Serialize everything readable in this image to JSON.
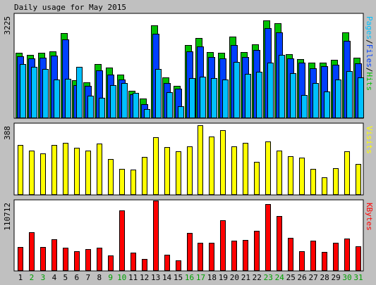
{
  "title": "Daily usage for May 2015",
  "colors": {
    "page_bg": "#c0c0c0",
    "panel_bg": "#ffffff",
    "hits": "#00c000",
    "files": "#0040ff",
    "pages": "#00c0ff",
    "visits": "#ffff00",
    "kbytes": "#ff0000",
    "weekday_label": "#000000",
    "weekend_label": "#00a000"
  },
  "chart_data": [
    {
      "type": "bar",
      "panel": "top",
      "ymax_label": "3225",
      "ylabel_parts": [
        {
          "text": "Pages",
          "color": "#00c0ff"
        },
        {
          "text": "/",
          "color": "#000000"
        },
        {
          "text": "Files",
          "color": "#0040ff"
        },
        {
          "text": "/",
          "color": "#000000"
        },
        {
          "text": "Hits",
          "color": "#00c000"
        }
      ],
      "ylim": [
        0,
        3225
      ],
      "categories": [
        "1",
        "2",
        "3",
        "4",
        "5",
        "6",
        "7",
        "8",
        "9",
        "10",
        "11",
        "12",
        "13",
        "14",
        "15",
        "16",
        "17",
        "18",
        "19",
        "20",
        "21",
        "22",
        "23",
        "24",
        "25",
        "26",
        "27",
        "28",
        "29",
        "30",
        "31"
      ],
      "series": [
        {
          "name": "Hits",
          "color": "#00c000",
          "values": [
            2010,
            1960,
            2010,
            2060,
            2640,
            1160,
            1100,
            1660,
            1560,
            1330,
            840,
            590,
            2870,
            1240,
            990,
            2250,
            2490,
            2040,
            2010,
            2520,
            2040,
            2290,
            3020,
            2950,
            1970,
            1830,
            1720,
            1720,
            1790,
            2660,
            1860
          ]
        },
        {
          "name": "Files",
          "color": "#0040ff",
          "values": [
            1910,
            1840,
            1870,
            1920,
            2440,
            1000,
            980,
            1460,
            1330,
            1180,
            730,
            410,
            2620,
            1080,
            900,
            2060,
            2220,
            1880,
            1850,
            2270,
            1880,
            2100,
            2780,
            2660,
            1840,
            1710,
            1530,
            1600,
            1640,
            2390,
            1700
          ]
        },
        {
          "name": "Pages",
          "color": "#00c0ff",
          "values": [
            1660,
            1570,
            1520,
            1180,
            1200,
            1570,
            670,
            610,
            1000,
            1080,
            770,
            260,
            1520,
            790,
            360,
            1230,
            1280,
            1220,
            1190,
            1730,
            1350,
            1420,
            1720,
            1950,
            1390,
            710,
            1080,
            810,
            1180,
            1440,
            1240
          ]
        }
      ]
    },
    {
      "type": "bar",
      "panel": "middle",
      "ymax_label": "388",
      "ylabel_parts": [
        {
          "text": "Visits",
          "color": "#ffff00"
        }
      ],
      "ylim": [
        0,
        388
      ],
      "categories": [
        "1",
        "2",
        "3",
        "4",
        "5",
        "6",
        "7",
        "8",
        "9",
        "10",
        "11",
        "12",
        "13",
        "14",
        "15",
        "16",
        "17",
        "18",
        "19",
        "20",
        "21",
        "22",
        "23",
        "24",
        "25",
        "26",
        "27",
        "28",
        "29",
        "30",
        "31"
      ],
      "series": [
        {
          "name": "Visits",
          "color": "#ffff00",
          "values": [
            270,
            240,
            225,
            270,
            285,
            255,
            240,
            280,
            195,
            140,
            135,
            205,
            315,
            260,
            235,
            265,
            380,
            320,
            355,
            265,
            285,
            180,
            290,
            240,
            210,
            200,
            140,
            95,
            145,
            235,
            165
          ]
        }
      ]
    },
    {
      "type": "bar",
      "panel": "bottom",
      "ymax_label": "110712",
      "ylabel_parts": [
        {
          "text": "KBytes",
          "color": "#ff0000"
        }
      ],
      "ylim": [
        0,
        110712
      ],
      "categories": [
        "1",
        "2",
        "3",
        "4",
        "5",
        "6",
        "7",
        "8",
        "9",
        "10",
        "11",
        "12",
        "13",
        "14",
        "15",
        "16",
        "17",
        "18",
        "19",
        "20",
        "21",
        "22",
        "23",
        "24",
        "25",
        "26",
        "27",
        "28",
        "29",
        "30",
        "31"
      ],
      "series": [
        {
          "name": "KBytes",
          "color": "#ff0000",
          "values": [
            37000,
            60000,
            37000,
            49000,
            36000,
            30000,
            33000,
            36000,
            24000,
            95000,
            28000,
            18000,
            110712,
            25000,
            16000,
            59000,
            44000,
            44000,
            79000,
            47000,
            48000,
            63000,
            105000,
            86000,
            52000,
            30000,
            47000,
            29000,
            44000,
            50000,
            38000
          ]
        }
      ]
    }
  ],
  "x_axis": {
    "labels": [
      "1",
      "2",
      "3",
      "4",
      "5",
      "6",
      "7",
      "8",
      "9",
      "10",
      "11",
      "12",
      "13",
      "14",
      "15",
      "16",
      "17",
      "18",
      "19",
      "20",
      "21",
      "22",
      "23",
      "24",
      "25",
      "26",
      "27",
      "28",
      "29",
      "30",
      "31"
    ],
    "weekend_days": [
      2,
      3,
      9,
      10,
      16,
      17,
      23,
      24,
      30,
      31
    ]
  }
}
